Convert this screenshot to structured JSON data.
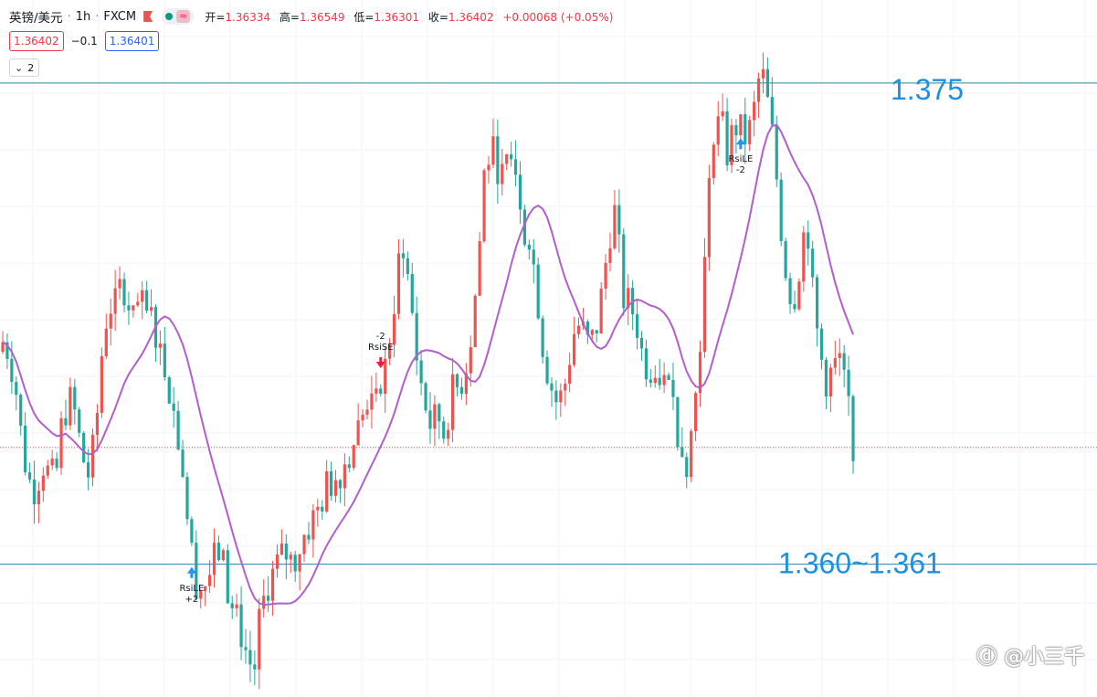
{
  "header": {
    "symbol": "英镑/美元",
    "interval": "1h",
    "source": "FXCM",
    "open_label": "开=",
    "open": "1.36334",
    "high_label": "高=",
    "high": "1.36549",
    "low_label": "低=",
    "low": "1.36301",
    "close_label": "收=",
    "close": "1.36402",
    "change": "+0.00068 (+0.05%)"
  },
  "quote": {
    "sell": "1.36402",
    "spread": "−0.1",
    "buy": "1.36401"
  },
  "indicator_toggle": "2",
  "annotations": {
    "resistance": "1.375",
    "support": "1.360~1.361"
  },
  "watermark": "ⓓ @小三千",
  "colors": {
    "up": "#ef5350",
    "down": "#26a69a",
    "ma": "#b060c8",
    "level_line": "#1e88a8",
    "annotation_text": "#1e90dd",
    "long_signal": "#2196f3",
    "short_signal": "#e91e3a"
  },
  "chart_data": {
    "type": "candlestick",
    "title": "英镑/美元 · 1h · FXCM",
    "ylim": [
      1.3565,
      1.3775
    ],
    "grid": true,
    "candles_close_path": [
      1.3672,
      1.3669,
      1.3658,
      1.364,
      1.363,
      1.3628,
      1.3636,
      1.3632,
      1.363,
      1.3648,
      1.3655,
      1.365,
      1.3638,
      1.3632,
      1.3642,
      1.3668,
      1.3684,
      1.3682,
      1.369,
      1.3687,
      1.3684,
      1.3682,
      1.368,
      1.3678,
      1.3668,
      1.3662,
      1.365,
      1.364,
      1.362,
      1.3602,
      1.3598,
      1.36,
      1.3606,
      1.361,
      1.3598,
      1.359,
      1.3586,
      1.3578,
      1.3573,
      1.3588,
      1.3598,
      1.3602,
      1.3606,
      1.3608,
      1.3605,
      1.361,
      1.3615,
      1.3618,
      1.3622,
      1.3628,
      1.363,
      1.3633,
      1.3636,
      1.3641,
      1.3646,
      1.3652,
      1.3655,
      1.366,
      1.3664,
      1.3678,
      1.3695,
      1.3698,
      1.3682,
      1.3664,
      1.3654,
      1.3646,
      1.365,
      1.3644,
      1.3656,
      1.3658,
      1.3662,
      1.3674,
      1.3692,
      1.3722,
      1.373,
      1.3726,
      1.372,
      1.3728,
      1.3724,
      1.3708,
      1.3703,
      1.3688,
      1.367,
      1.366,
      1.3654,
      1.3656,
      1.3668,
      1.3678,
      1.3675,
      1.367,
      1.3676,
      1.3688,
      1.3705,
      1.3712,
      1.3686,
      1.3683,
      1.368,
      1.3668,
      1.3664,
      1.3666,
      1.366,
      1.3658,
      1.365,
      1.364,
      1.3636,
      1.3654,
      1.368,
      1.3712,
      1.3742,
      1.3738,
      1.3728,
      1.3738,
      1.3735,
      1.3733,
      1.3742,
      1.3755,
      1.3744,
      1.373,
      1.3708,
      1.369,
      1.3684,
      1.3698,
      1.371,
      1.3682,
      1.3668,
      1.366,
      1.3664,
      1.3666,
      1.3658,
      1.3642
    ],
    "moving_average": {
      "name": "",
      "color": "#b060c8"
    },
    "horizontal_levels": [
      1.375,
      1.3605
    ],
    "last_price": 1.36402,
    "signals": [
      {
        "label": "RsiLE",
        "qty": "+2",
        "bar": 42,
        "side": "long"
      },
      {
        "label": "RsiSE",
        "qty": "-2",
        "bar": 84,
        "side": "short"
      },
      {
        "label": "RsiLE",
        "qty": "-2",
        "bar": 164,
        "side": "long"
      }
    ]
  }
}
